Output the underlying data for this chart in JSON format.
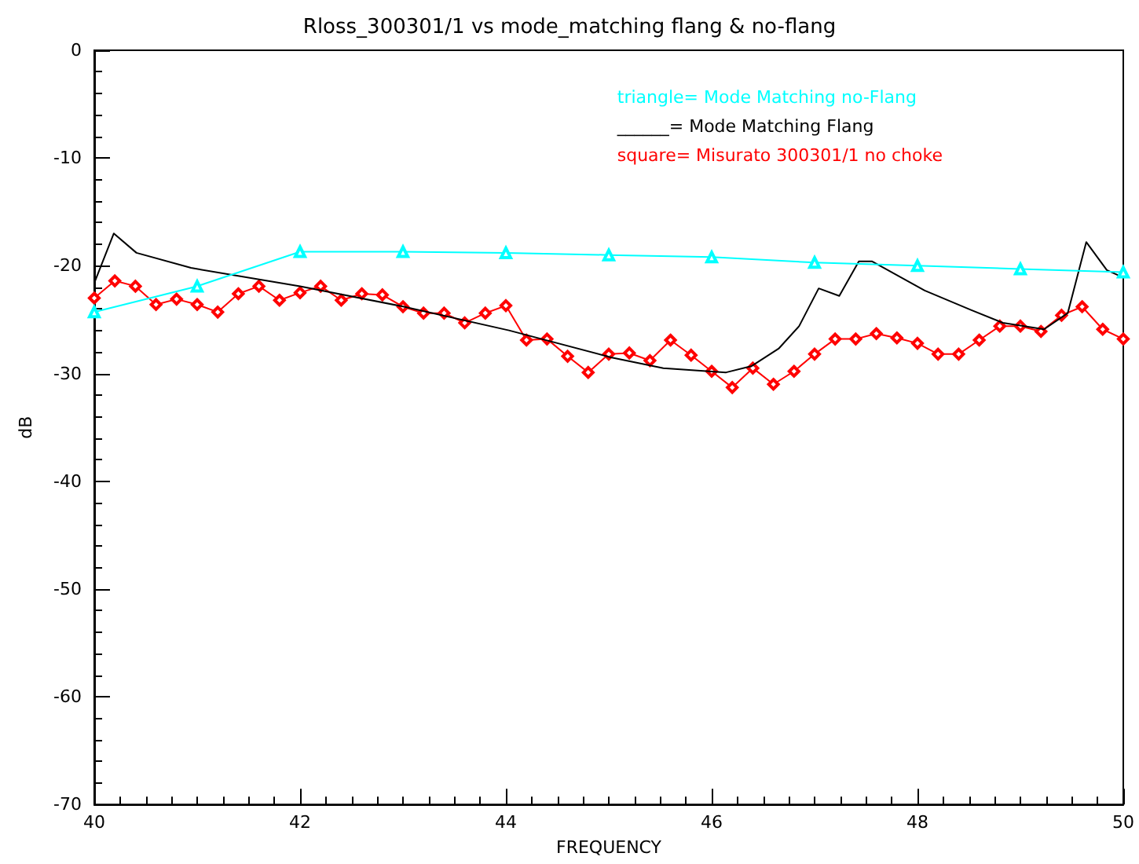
{
  "chart_data": {
    "type": "line",
    "title": "Rloss_300301/1 vs mode_matching flang & no-flang",
    "xlabel": "FREQUENCY",
    "ylabel": "dB",
    "xlim": [
      40,
      50
    ],
    "xticks": [
      40,
      42,
      44,
      46,
      48,
      50
    ],
    "ylim": [
      -70,
      0
    ],
    "yticks": [
      -70,
      -60,
      -50,
      -40,
      -30,
      -20,
      -10,
      0
    ],
    "grid": false,
    "legend": "top right",
    "series": [
      {
        "name": "triangle= Mode Matching no-Flang",
        "color": "#00ffff",
        "marker": "triangle",
        "line_style": "solid",
        "x": [
          40,
          41,
          42,
          43,
          44,
          45,
          46,
          47,
          48,
          49,
          50
        ],
        "values": [
          -24.3,
          -21.9,
          -18.7,
          -18.7,
          -18.8,
          -19.0,
          -19.2,
          -19.7,
          -20.0,
          -20.3,
          -20.6
        ]
      },
      {
        "name": "______= Mode Matching Flang",
        "color": "#000000",
        "marker": "none",
        "line_style": "solid",
        "x": [
          40,
          40.19,
          40.41,
          40.94,
          42,
          43.01,
          44.03,
          45.02,
          45.53,
          46.14,
          46.39,
          46.65,
          46.85,
          47.04,
          47.24,
          47.43,
          47.56,
          48.07,
          48.52,
          48.83,
          49.23,
          49.46,
          49.64,
          49.84,
          50
        ],
        "values": [
          -21.6,
          -17.0,
          -18.8,
          -20.2,
          -21.9,
          -23.8,
          -26.0,
          -28.5,
          -29.5,
          -29.9,
          -29.3,
          -27.7,
          -25.6,
          -22.1,
          -22.8,
          -19.6,
          -19.6,
          -22.3,
          -24.1,
          -25.3,
          -25.9,
          -24.4,
          -17.8,
          -20.4,
          -21.1
        ]
      },
      {
        "name": "square= Misurato 300301/1 no choke",
        "color": "#ff0000",
        "marker": "diamond",
        "line_style": "solid",
        "x": [
          40,
          40.2,
          40.4,
          40.6,
          40.8,
          41,
          41.2,
          41.4,
          41.6,
          41.8,
          42,
          42.2,
          42.4,
          42.6,
          42.8,
          43,
          43.2,
          43.4,
          43.6,
          43.8,
          44,
          44.2,
          44.4,
          44.6,
          44.8,
          45,
          45.2,
          45.4,
          45.6,
          45.8,
          46,
          46.2,
          46.4,
          46.6,
          46.8,
          47,
          47.2,
          47.4,
          47.6,
          47.8,
          48,
          48.2,
          48.4,
          48.6,
          48.8,
          49,
          49.2,
          49.4,
          49.6,
          49.8,
          50
        ],
        "values": [
          -23.0,
          -21.4,
          -21.9,
          -23.6,
          -23.1,
          -23.6,
          -24.3,
          -22.6,
          -21.9,
          -23.2,
          -22.5,
          -21.9,
          -23.2,
          -22.6,
          -22.7,
          -23.8,
          -24.4,
          -24.4,
          -25.3,
          -24.4,
          -23.7,
          -26.9,
          -26.8,
          -28.4,
          -29.9,
          -28.2,
          -28.1,
          -28.8,
          -26.9,
          -28.3,
          -29.8,
          -31.3,
          -29.5,
          -31.0,
          -29.8,
          -28.2,
          -26.8,
          -26.8,
          -26.3,
          -26.7,
          -27.2,
          -28.2,
          -28.2,
          -26.9,
          -25.6,
          -25.6,
          -26.1,
          -24.6,
          -23.8,
          -25.9,
          -26.8
        ]
      }
    ]
  }
}
